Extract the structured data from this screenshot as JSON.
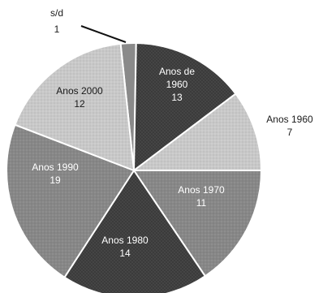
{
  "chart_data": {
    "type": "pie",
    "title": "",
    "slices": [
      {
        "label": "s/d",
        "value": 1,
        "color": "#7a7a7a",
        "pattern": "solid-mid"
      },
      {
        "label": "Anos de 1960",
        "value": 13,
        "color": "#3e3e3e",
        "pattern": "dots-dark"
      },
      {
        "label": "Anos 1960",
        "value": 7,
        "color": "#b8b8b8",
        "pattern": "dots-light"
      },
      {
        "label": "Anos 1970",
        "value": 11,
        "color": "#777777",
        "pattern": "dots-mid"
      },
      {
        "label": "Anos 1980",
        "value": 14,
        "color": "#3a3a3a",
        "pattern": "dots-dark"
      },
      {
        "label": "Anos 1990",
        "value": 19,
        "color": "#9a9a9a",
        "pattern": "dots-mid"
      },
      {
        "label": "Anos 2000",
        "value": 12,
        "color": "#d8d8d8",
        "pattern": "dots-light"
      }
    ]
  }
}
